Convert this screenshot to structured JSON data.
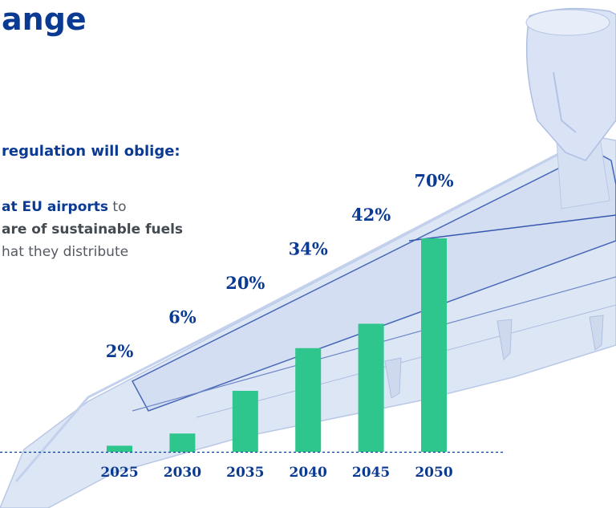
{
  "heading": "ange",
  "subheading": "regulation will oblige:",
  "body": {
    "line1_highlight": "at EU airports",
    "line1_rest": " to",
    "line2": "are of sustainable fuels",
    "line3": "hat they distribute"
  },
  "colors": {
    "brand_blue": "#0b3a93",
    "bar_green": "#2ec68c",
    "plane_tint": "#dce6f6"
  },
  "chart_data": {
    "type": "bar",
    "categories": [
      "2025",
      "2030",
      "2035",
      "2040",
      "2045",
      "2050"
    ],
    "values": [
      2,
      6,
      20,
      34,
      42,
      70
    ],
    "value_labels": [
      "2%",
      "6%",
      "20%",
      "34%",
      "42%",
      "70%"
    ],
    "title": "",
    "xlabel": "",
    "ylabel": "",
    "ylim": [
      0,
      70
    ],
    "grid": false,
    "baseline": "dotted"
  }
}
